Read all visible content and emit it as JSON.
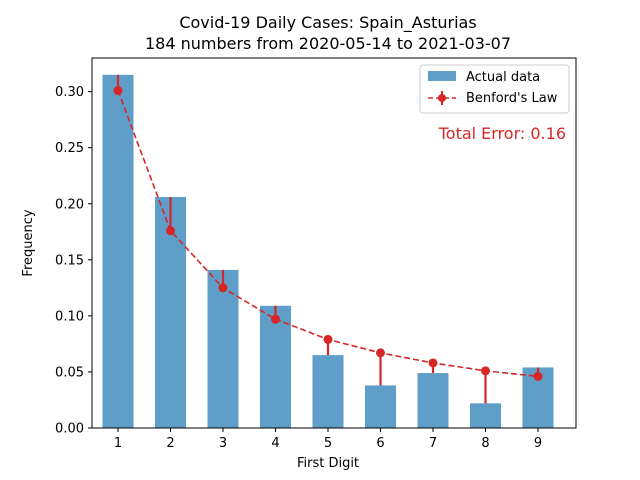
{
  "chart_data": {
    "type": "bar",
    "title": "Covid-19 Daily Cases: Spain_Asturias",
    "subtitle": "184 numbers from 2020-05-14 to 2021-03-07",
    "xlabel": "First Digit",
    "ylabel": "Frequency",
    "categories": [
      "1",
      "2",
      "3",
      "4",
      "5",
      "6",
      "7",
      "8",
      "9"
    ],
    "ylim": [
      0,
      0.33
    ],
    "yticks": [
      "0.00",
      "0.05",
      "0.10",
      "0.15",
      "0.20",
      "0.25",
      "0.30"
    ],
    "series": [
      {
        "name": "Actual data",
        "kind": "bar",
        "color": "#5f9ec8",
        "values": [
          0.315,
          0.206,
          0.141,
          0.109,
          0.065,
          0.038,
          0.049,
          0.022,
          0.054
        ]
      },
      {
        "name": "Benford's Law",
        "kind": "line",
        "style": "dashed",
        "marker": "circle",
        "color": "#d62728",
        "values": [
          0.301,
          0.176,
          0.125,
          0.097,
          0.079,
          0.067,
          0.058,
          0.051,
          0.046
        ]
      }
    ],
    "annotation": {
      "text": "Total Error: 0.16",
      "color": "#d62728"
    },
    "legend": "top-right",
    "grid": false
  }
}
